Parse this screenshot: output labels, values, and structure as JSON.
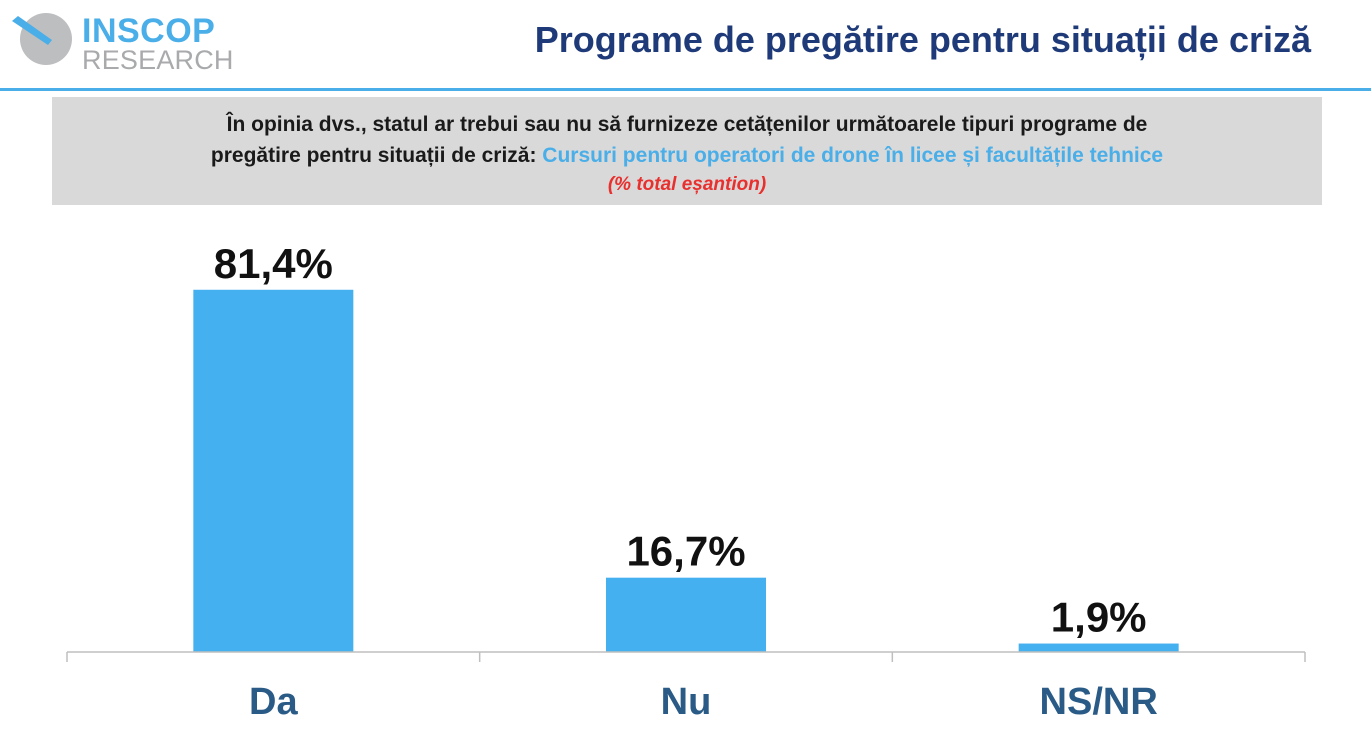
{
  "logo": {
    "brand": "INSCOP",
    "sub": "RESEARCH"
  },
  "page": {
    "title": "Programe de pregătire pentru situații de criză"
  },
  "question": {
    "text_line1": "În opinia dvs., statul ar trebui sau nu să furnizeze cetățenilor următoarele tipuri programe de",
    "text_line2_prefix": "pregătire pentru situații de criză: ",
    "topic": "Cursuri pentru operatori de drone în licee și facultățile tehnice",
    "note": "(% total eșantion)"
  },
  "colors": {
    "bar": "#45b0ef",
    "title": "#1f3a78",
    "category": "#2a5b86",
    "note": "#e8312f",
    "accent": "#4aaee8"
  },
  "chart_data": {
    "type": "bar",
    "title": "Programe de pregătire pentru situații de criză",
    "categories": [
      "Da",
      "Nu",
      "NS/NR"
    ],
    "values": [
      81.4,
      16.7,
      1.9
    ],
    "value_labels": [
      "81,4%",
      "16,7%",
      "1,9%"
    ],
    "xlabel": "",
    "ylabel": "",
    "ylim": [
      0,
      100
    ],
    "grid": false
  }
}
